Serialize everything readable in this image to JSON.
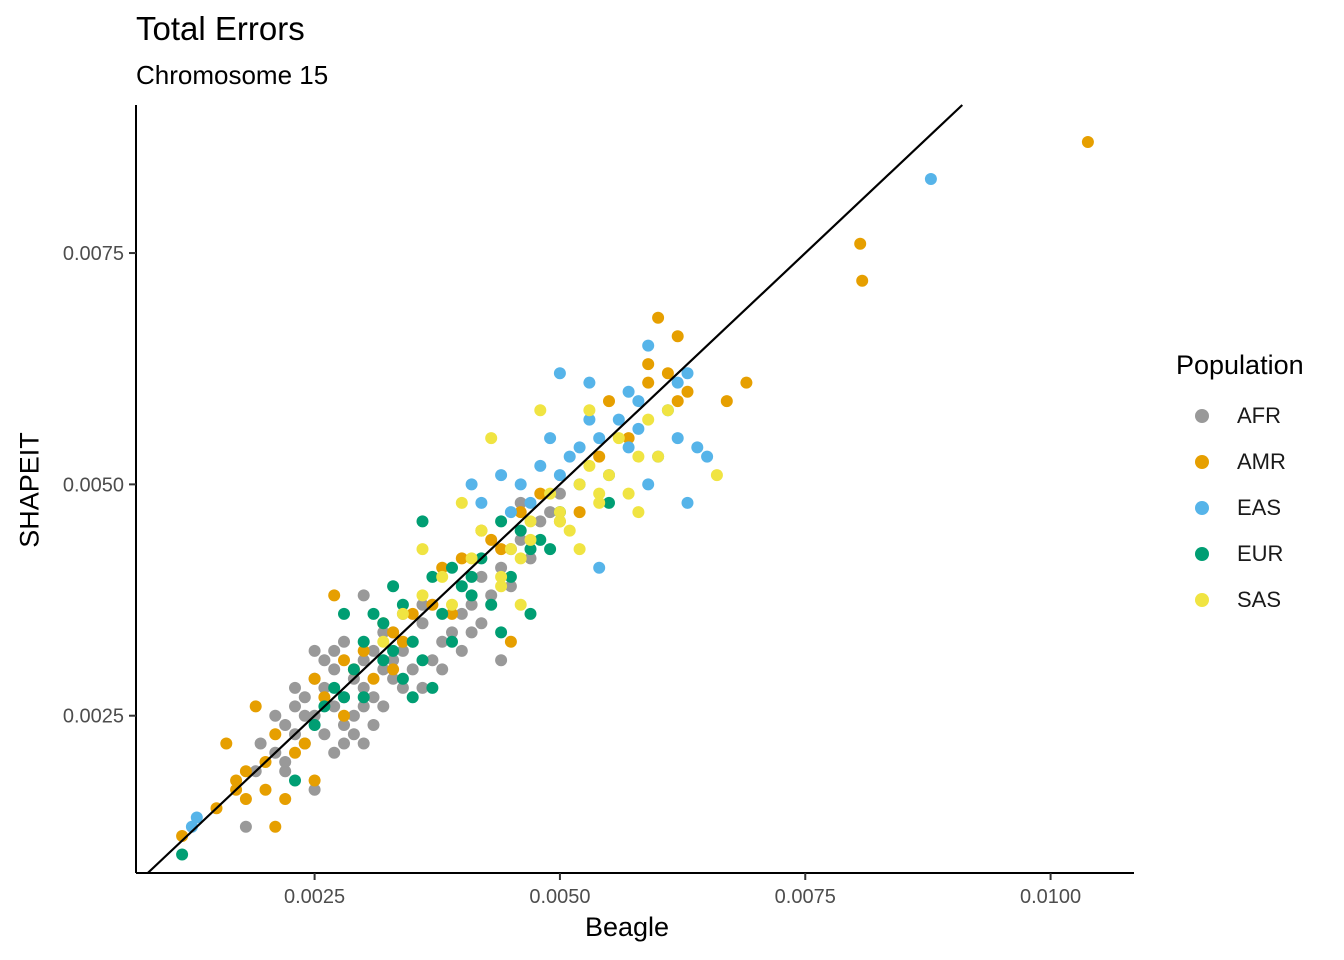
{
  "chart_data": {
    "type": "scatter",
    "title": "Total Errors",
    "subtitle": "Chromosome 15",
    "xlabel": "Beagle",
    "ylabel": "SHAPEIT",
    "xlim": [
      0.00068,
      0.01085
    ],
    "ylim": [
      0.0008,
      0.0091
    ],
    "x_ticks": [
      0.0025,
      0.005,
      0.0075,
      0.01
    ],
    "x_tick_labels": [
      "0.0025",
      "0.0050",
      "0.0075",
      "0.0100"
    ],
    "y_ticks": [
      0.0025,
      0.005,
      0.0075
    ],
    "y_tick_labels": [
      "0.0025",
      "0.0050",
      "0.0075"
    ],
    "reference_line": "y = x",
    "grid": false,
    "legend_placement": "right",
    "legend_title": "Population",
    "series": [
      {
        "name": "AFR",
        "color": "#999999",
        "points": [
          [
            0.0018,
            0.0013
          ],
          [
            0.0019,
            0.0019
          ],
          [
            0.00195,
            0.0022
          ],
          [
            0.0021,
            0.0021
          ],
          [
            0.0021,
            0.0025
          ],
          [
            0.0022,
            0.0019
          ],
          [
            0.0022,
            0.0024
          ],
          [
            0.0023,
            0.0023
          ],
          [
            0.0023,
            0.0026
          ],
          [
            0.0024,
            0.0022
          ],
          [
            0.0024,
            0.0027
          ],
          [
            0.0025,
            0.0017
          ],
          [
            0.0025,
            0.0025
          ],
          [
            0.0025,
            0.0029
          ],
          [
            0.0025,
            0.0032
          ],
          [
            0.0026,
            0.0023
          ],
          [
            0.0026,
            0.0028
          ],
          [
            0.0027,
            0.0021
          ],
          [
            0.0027,
            0.0026
          ],
          [
            0.0027,
            0.003
          ],
          [
            0.0028,
            0.0024
          ],
          [
            0.0028,
            0.0027
          ],
          [
            0.0028,
            0.0033
          ],
          [
            0.0029,
            0.0025
          ],
          [
            0.0029,
            0.0029
          ],
          [
            0.003,
            0.0022
          ],
          [
            0.003,
            0.0028
          ],
          [
            0.003,
            0.0031
          ],
          [
            0.003,
            0.0038
          ],
          [
            0.0031,
            0.0027
          ],
          [
            0.0031,
            0.0032
          ],
          [
            0.0032,
            0.0026
          ],
          [
            0.0032,
            0.003
          ],
          [
            0.0033,
            0.0029
          ],
          [
            0.0033,
            0.0034
          ],
          [
            0.0034,
            0.0028
          ],
          [
            0.0034,
            0.0032
          ],
          [
            0.0034,
            0.0036
          ],
          [
            0.0035,
            0.003
          ],
          [
            0.0035,
            0.0033
          ],
          [
            0.0036,
            0.0035
          ],
          [
            0.0036,
            0.0028
          ],
          [
            0.0037,
            0.0031
          ],
          [
            0.0038,
            0.0033
          ],
          [
            0.0039,
            0.0034
          ],
          [
            0.004,
            0.0036
          ],
          [
            0.004,
            0.0032
          ],
          [
            0.0041,
            0.0037
          ],
          [
            0.0042,
            0.0035
          ],
          [
            0.0042,
            0.004
          ],
          [
            0.0043,
            0.0038
          ],
          [
            0.0044,
            0.0031
          ],
          [
            0.0044,
            0.0041
          ],
          [
            0.0045,
            0.0039
          ],
          [
            0.0045,
            0.0043
          ],
          [
            0.0046,
            0.0048
          ],
          [
            0.0046,
            0.0044
          ],
          [
            0.0047,
            0.0042
          ],
          [
            0.0048,
            0.0046
          ],
          [
            0.0049,
            0.0047
          ],
          [
            0.005,
            0.0049
          ],
          [
            0.0031,
            0.0024
          ],
          [
            0.0029,
            0.0023
          ],
          [
            0.0023,
            0.0028
          ],
          [
            0.0026,
            0.0031
          ],
          [
            0.0028,
            0.0022
          ],
          [
            0.0032,
            0.0034
          ],
          [
            0.0036,
            0.0037
          ],
          [
            0.0038,
            0.003
          ],
          [
            0.0041,
            0.0034
          ],
          [
            0.0022,
            0.002
          ],
          [
            0.0024,
            0.0025
          ],
          [
            0.0027,
            0.0032
          ],
          [
            0.003,
            0.0026
          ],
          [
            0.0033,
            0.0031
          ]
        ]
      },
      {
        "name": "AMR",
        "color": "#E69F00",
        "points": [
          [
            0.00115,
            0.0012
          ],
          [
            0.0015,
            0.0015
          ],
          [
            0.0016,
            0.0022
          ],
          [
            0.0017,
            0.0017
          ],
          [
            0.0018,
            0.0016
          ],
          [
            0.0018,
            0.0019
          ],
          [
            0.0019,
            0.0026
          ],
          [
            0.002,
            0.002
          ],
          [
            0.0021,
            0.0023
          ],
          [
            0.0021,
            0.0013
          ],
          [
            0.0022,
            0.0016
          ],
          [
            0.0023,
            0.0021
          ],
          [
            0.0024,
            0.0022
          ],
          [
            0.0025,
            0.0018
          ],
          [
            0.0025,
            0.0029
          ],
          [
            0.0026,
            0.0027
          ],
          [
            0.0027,
            0.0038
          ],
          [
            0.0028,
            0.0031
          ],
          [
            0.0029,
            0.003
          ],
          [
            0.003,
            0.0032
          ],
          [
            0.0031,
            0.0029
          ],
          [
            0.0032,
            0.0035
          ],
          [
            0.0033,
            0.0034
          ],
          [
            0.0034,
            0.0033
          ],
          [
            0.0035,
            0.0036
          ],
          [
            0.0037,
            0.0037
          ],
          [
            0.0038,
            0.0041
          ],
          [
            0.0039,
            0.0036
          ],
          [
            0.004,
            0.0042
          ],
          [
            0.0042,
            0.0045
          ],
          [
            0.0043,
            0.0044
          ],
          [
            0.0044,
            0.0043
          ],
          [
            0.0045,
            0.0033
          ],
          [
            0.0046,
            0.0047
          ],
          [
            0.0048,
            0.0049
          ],
          [
            0.005,
            0.0046
          ],
          [
            0.0052,
            0.0047
          ],
          [
            0.0054,
            0.0053
          ],
          [
            0.0055,
            0.0059
          ],
          [
            0.0057,
            0.0055
          ],
          [
            0.0059,
            0.0061
          ],
          [
            0.0059,
            0.0063
          ],
          [
            0.006,
            0.0068
          ],
          [
            0.0061,
            0.0062
          ],
          [
            0.0062,
            0.0066
          ],
          [
            0.0062,
            0.0059
          ],
          [
            0.0063,
            0.006
          ],
          [
            0.0067,
            0.0059
          ],
          [
            0.0069,
            0.0061
          ],
          [
            0.00806,
            0.0076
          ],
          [
            0.00808,
            0.0072
          ],
          [
            0.01038,
            0.0087
          ],
          [
            0.0017,
            0.0018
          ],
          [
            0.002,
            0.0017
          ],
          [
            0.0028,
            0.0025
          ],
          [
            0.0033,
            0.003
          ]
        ]
      },
      {
        "name": "EAS",
        "color": "#56B4E9",
        "points": [
          [
            0.00125,
            0.0013
          ],
          [
            0.0013,
            0.0014
          ],
          [
            0.0041,
            0.005
          ],
          [
            0.0042,
            0.0048
          ],
          [
            0.0044,
            0.0051
          ],
          [
            0.0045,
            0.0047
          ],
          [
            0.0046,
            0.005
          ],
          [
            0.0047,
            0.0048
          ],
          [
            0.0048,
            0.0052
          ],
          [
            0.0049,
            0.0055
          ],
          [
            0.005,
            0.0051
          ],
          [
            0.005,
            0.0062
          ],
          [
            0.0051,
            0.0053
          ],
          [
            0.0052,
            0.0054
          ],
          [
            0.0053,
            0.0057
          ],
          [
            0.0053,
            0.0061
          ],
          [
            0.0054,
            0.0041
          ],
          [
            0.0054,
            0.0055
          ],
          [
            0.0055,
            0.0051
          ],
          [
            0.0056,
            0.0057
          ],
          [
            0.0057,
            0.006
          ],
          [
            0.0057,
            0.0054
          ],
          [
            0.0058,
            0.0056
          ],
          [
            0.0059,
            0.005
          ],
          [
            0.0059,
            0.0065
          ],
          [
            0.006,
            0.0053
          ],
          [
            0.0061,
            0.0058
          ],
          [
            0.0062,
            0.0055
          ],
          [
            0.0062,
            0.0061
          ],
          [
            0.0063,
            0.0062
          ],
          [
            0.0063,
            0.0048
          ],
          [
            0.0064,
            0.0054
          ],
          [
            0.0065,
            0.0053
          ],
          [
            0.00878,
            0.0083
          ],
          [
            0.0058,
            0.0059
          ],
          [
            0.0052,
            0.005
          ]
        ]
      },
      {
        "name": "EUR",
        "color": "#009E73",
        "points": [
          [
            0.00115,
            0.001
          ],
          [
            0.0023,
            0.0018
          ],
          [
            0.0025,
            0.0024
          ],
          [
            0.0026,
            0.0026
          ],
          [
            0.0027,
            0.0028
          ],
          [
            0.0028,
            0.0036
          ],
          [
            0.0029,
            0.003
          ],
          [
            0.003,
            0.0033
          ],
          [
            0.0031,
            0.0036
          ],
          [
            0.0032,
            0.0035
          ],
          [
            0.0033,
            0.0032
          ],
          [
            0.0033,
            0.0039
          ],
          [
            0.0034,
            0.0037
          ],
          [
            0.0035,
            0.0027
          ],
          [
            0.0035,
            0.0033
          ],
          [
            0.0036,
            0.0046
          ],
          [
            0.0036,
            0.0031
          ],
          [
            0.0037,
            0.004
          ],
          [
            0.0037,
            0.0028
          ],
          [
            0.0038,
            0.0036
          ],
          [
            0.0039,
            0.0041
          ],
          [
            0.004,
            0.0039
          ],
          [
            0.0041,
            0.0038
          ],
          [
            0.0041,
            0.004
          ],
          [
            0.0042,
            0.0042
          ],
          [
            0.0043,
            0.0037
          ],
          [
            0.0044,
            0.0034
          ],
          [
            0.0045,
            0.004
          ],
          [
            0.0046,
            0.0045
          ],
          [
            0.0047,
            0.0036
          ],
          [
            0.0047,
            0.0043
          ],
          [
            0.0048,
            0.0044
          ],
          [
            0.0049,
            0.0043
          ],
          [
            0.005,
            0.0047
          ],
          [
            0.003,
            0.0027
          ],
          [
            0.0034,
            0.0029
          ],
          [
            0.0039,
            0.0033
          ],
          [
            0.0044,
            0.0046
          ],
          [
            0.0055,
            0.0048
          ],
          [
            0.0028,
            0.0027
          ],
          [
            0.0032,
            0.0031
          ]
        ]
      },
      {
        "name": "SAS",
        "color": "#F0E442",
        "points": [
          [
            0.0032,
            0.0033
          ],
          [
            0.0034,
            0.0036
          ],
          [
            0.0036,
            0.0038
          ],
          [
            0.0036,
            0.0043
          ],
          [
            0.0038,
            0.004
          ],
          [
            0.0039,
            0.0037
          ],
          [
            0.004,
            0.0048
          ],
          [
            0.0041,
            0.0042
          ],
          [
            0.0042,
            0.0045
          ],
          [
            0.0043,
            0.0055
          ],
          [
            0.0044,
            0.004
          ],
          [
            0.0045,
            0.0043
          ],
          [
            0.0046,
            0.0042
          ],
          [
            0.0047,
            0.0046
          ],
          [
            0.0047,
            0.0044
          ],
          [
            0.0048,
            0.0058
          ],
          [
            0.0049,
            0.0049
          ],
          [
            0.005,
            0.0046
          ],
          [
            0.0051,
            0.0045
          ],
          [
            0.0052,
            0.0043
          ],
          [
            0.0052,
            0.005
          ],
          [
            0.0053,
            0.0052
          ],
          [
            0.0053,
            0.0058
          ],
          [
            0.0054,
            0.0048
          ],
          [
            0.0055,
            0.0051
          ],
          [
            0.0056,
            0.0055
          ],
          [
            0.0057,
            0.0049
          ],
          [
            0.0058,
            0.0047
          ],
          [
            0.0058,
            0.0053
          ],
          [
            0.0059,
            0.0057
          ],
          [
            0.006,
            0.0053
          ],
          [
            0.0061,
            0.0058
          ],
          [
            0.0066,
            0.0051
          ],
          [
            0.0044,
            0.0039
          ],
          [
            0.0046,
            0.0037
          ],
          [
            0.005,
            0.0047
          ],
          [
            0.0054,
            0.0049
          ]
        ]
      }
    ]
  }
}
